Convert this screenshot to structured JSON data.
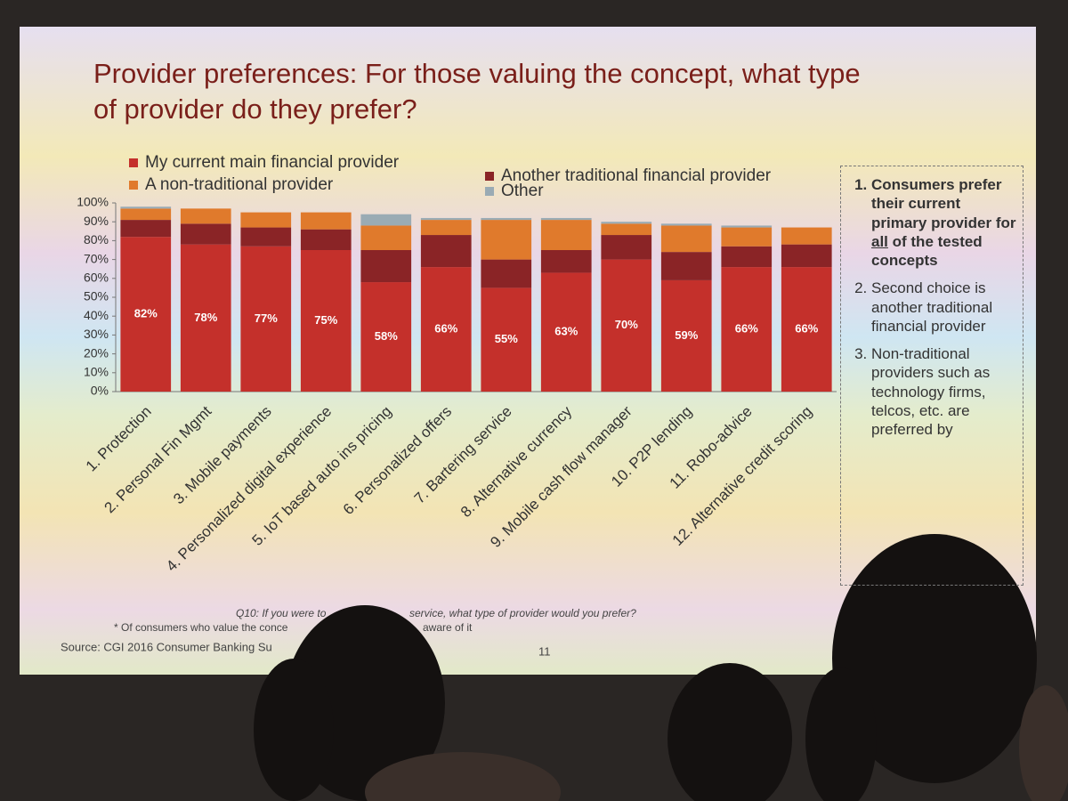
{
  "chart_data": {
    "type": "stacked-bar",
    "title": "Provider preferences: For those valuing the concept, what type of provider do they prefer?",
    "categories": [
      "1. Protection",
      "2. Personal Fin Mgmt",
      "3. Mobile payments",
      "4. Personalized digital experience",
      "5. IoT based auto ins pricing",
      "6. Personalized offers",
      "7. Bartering service",
      "8. Alternative currency",
      "9. Mobile cash flow manager",
      "10. P2P lending",
      "11. Robo-advice",
      "12. Alternative credit scoring"
    ],
    "series": [
      {
        "name": "My current main financial provider",
        "color": "#c4302b",
        "values": [
          82,
          78,
          77,
          75,
          58,
          66,
          55,
          63,
          70,
          59,
          66,
          66
        ],
        "value_labels": [
          "82%",
          "78%",
          "77%",
          "75%",
          "58%",
          "66%",
          "55%",
          "63%",
          "70%",
          "59%",
          "66%",
          "66%"
        ]
      },
      {
        "name": "Another traditional financial provider",
        "color": "#8a2426",
        "values": [
          9,
          11,
          10,
          11,
          17,
          17,
          15,
          12,
          13,
          15,
          11,
          12
        ]
      },
      {
        "name": "A non-traditional provider",
        "color": "#e07a2c",
        "values": [
          6,
          8,
          8,
          9,
          13,
          8,
          21,
          16,
          6,
          14,
          10,
          9
        ]
      },
      {
        "name": "Other",
        "color": "#9aabb4",
        "values": [
          1,
          0,
          0,
          0,
          6,
          1,
          1,
          1,
          1,
          1,
          1,
          0
        ]
      }
    ],
    "ylim": [
      0,
      100
    ],
    "yticks": [
      {
        "value": 0,
        "label": "0%"
      },
      {
        "value": 10,
        "label": "10%"
      },
      {
        "value": 20,
        "label": "20%"
      },
      {
        "value": 30,
        "label": "30%"
      },
      {
        "value": 40,
        "label": "40%"
      },
      {
        "value": 50,
        "label": "50%"
      },
      {
        "value": 60,
        "label": "60%"
      },
      {
        "value": 70,
        "label": "70%"
      },
      {
        "value": 80,
        "label": "80%"
      },
      {
        "value": 90,
        "label": "90%"
      },
      {
        "value": 100,
        "label": "100%"
      }
    ]
  },
  "notes": {
    "item1": [
      "Consumers prefer their current primary provider for ",
      "all",
      " of the tested concepts"
    ],
    "item2": "Second choice is another traditional financial provider",
    "item3": "Non-traditional providers such as technology firms, telcos, etc. are preferred by"
  },
  "footer": {
    "question_a": "Q10: If you were to",
    "question_b": "service, what type of provider would you prefer?",
    "footnote_a": "*  Of consumers who value the conce",
    "footnote_b": "aware of it",
    "source": "Source:  CGI 2016 Consumer Banking Su",
    "page": "11"
  }
}
